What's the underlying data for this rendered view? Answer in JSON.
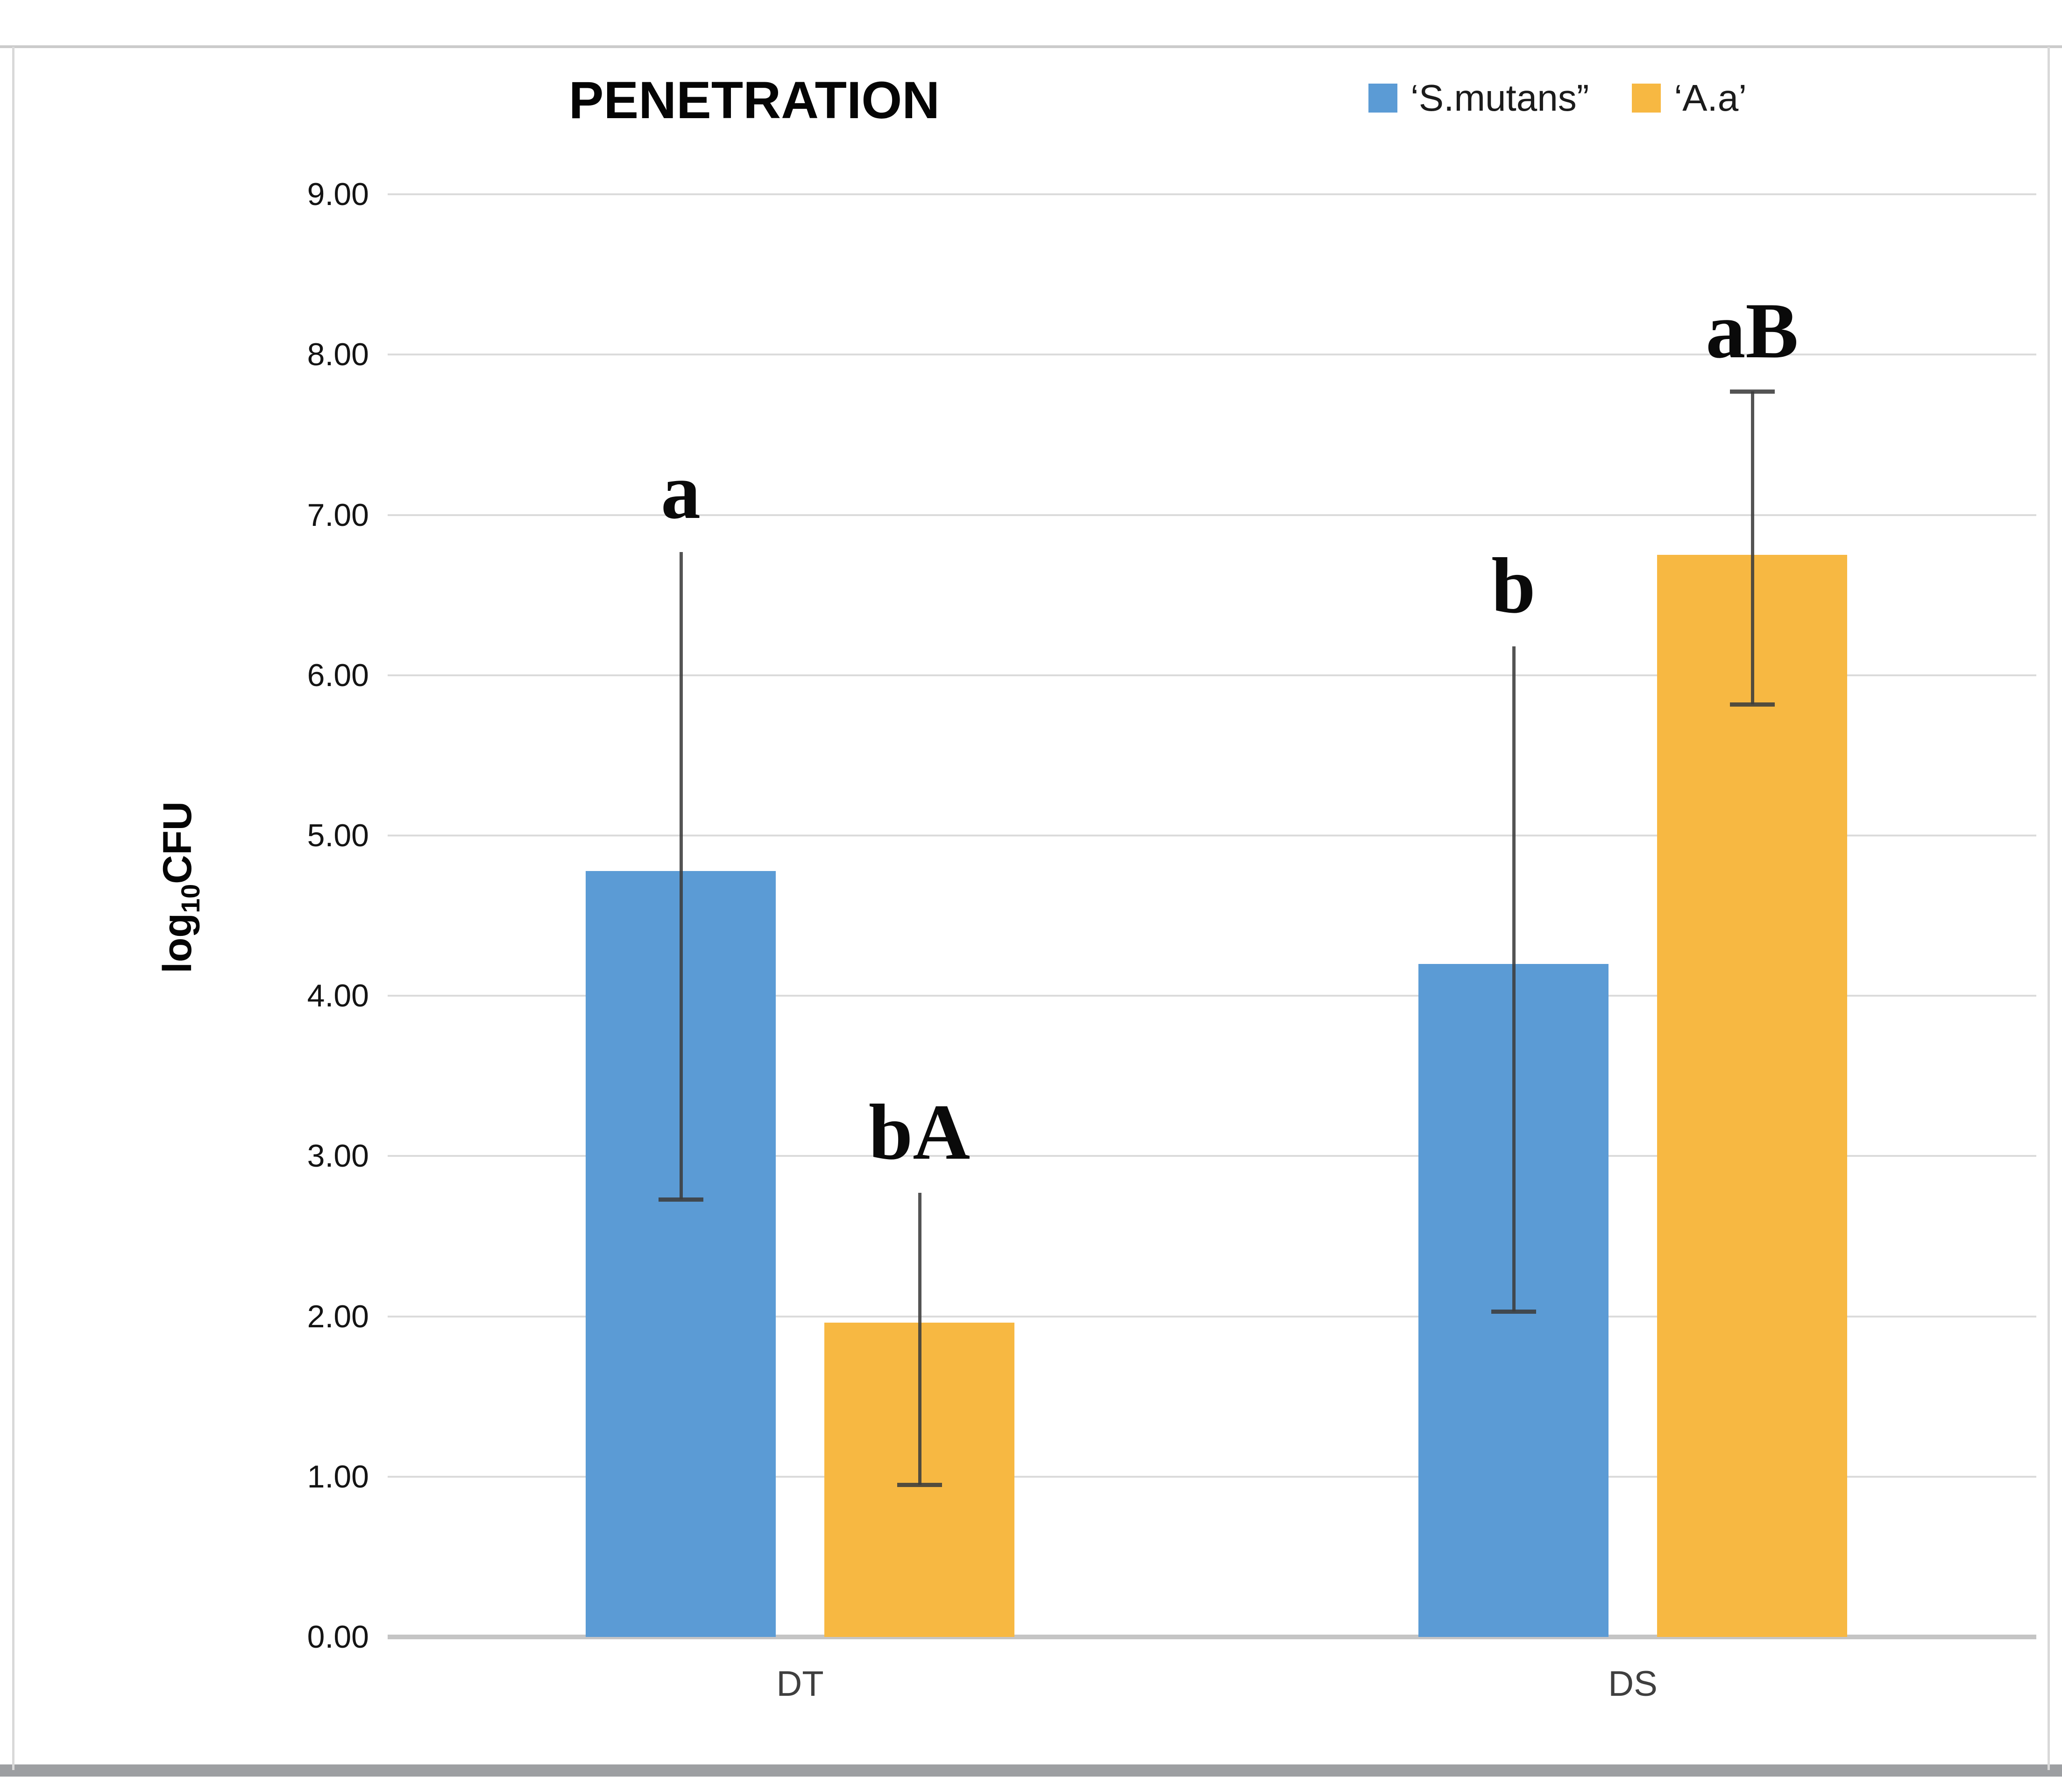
{
  "page": {
    "title": "PENETRATION"
  },
  "chart_data": {
    "type": "bar",
    "title": "PENETRATION",
    "ylabel": "log10CFU",
    "ylabel_parts": {
      "base": "log",
      "sub": "10",
      "rest": "CFU"
    },
    "xlabel": "",
    "categories": [
      "DT",
      "DS"
    ],
    "series": [
      {
        "name": "‘S.mutans”",
        "color": "#5B9BD5",
        "values": [
          4.78,
          4.2
        ],
        "error_low": [
          2.73,
          2.03
        ],
        "error_high": [
          6.77,
          6.18
        ],
        "sig_labels": [
          "a",
          "b"
        ]
      },
      {
        "name": "‘A.a’",
        "color": "#F7B842",
        "values": [
          1.96,
          6.75
        ],
        "error_low": [
          0.95,
          5.82
        ],
        "error_high": [
          2.77,
          7.77
        ],
        "sig_labels": [
          "bA",
          "aB"
        ]
      }
    ],
    "ylim": [
      0,
      9
    ],
    "ytick_step": 1,
    "yticks": [
      "0.00",
      "1.00",
      "2.00",
      "3.00",
      "4.00",
      "5.00",
      "6.00",
      "7.00",
      "8.00",
      "9.00"
    ],
    "grid": true,
    "legend_position": "top-right"
  }
}
